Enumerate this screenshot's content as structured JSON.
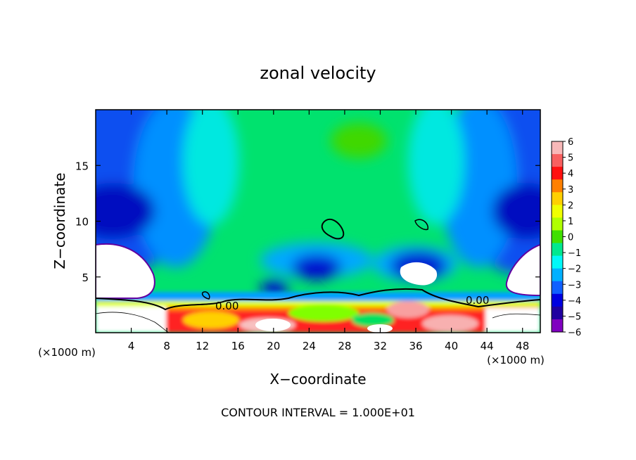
{
  "chart_data": {
    "type": "heatmap",
    "title": "zonal velocity",
    "xlabel": "X−coordinate",
    "ylabel": "Z−coordinate",
    "x_unit_label": "(×1000 m)",
    "xlim": [
      0,
      50
    ],
    "ylim": [
      0,
      20
    ],
    "x_ticks": [
      4,
      8,
      12,
      16,
      20,
      24,
      28,
      32,
      36,
      40,
      44,
      48
    ],
    "y_ticks": [
      5,
      10,
      15
    ],
    "footer": "CONTOUR INTERVAL = 1.000E+01",
    "contour_label": "0.00",
    "colorbar": {
      "ticks": [
        6,
        5,
        4,
        3,
        2,
        1,
        0,
        -1,
        -2,
        -3,
        -4,
        -5,
        -6
      ],
      "colors": [
        "#f8b8b8",
        "#f86060",
        "#ff1010",
        "#ff8000",
        "#ffd000",
        "#f0ff00",
        "#b0ff00",
        "#40e000",
        "#00e890",
        "#00f8f8",
        "#00b0ff",
        "#1060ff",
        "#0000e0",
        "#2000a0",
        "#8000c0"
      ]
    }
  }
}
